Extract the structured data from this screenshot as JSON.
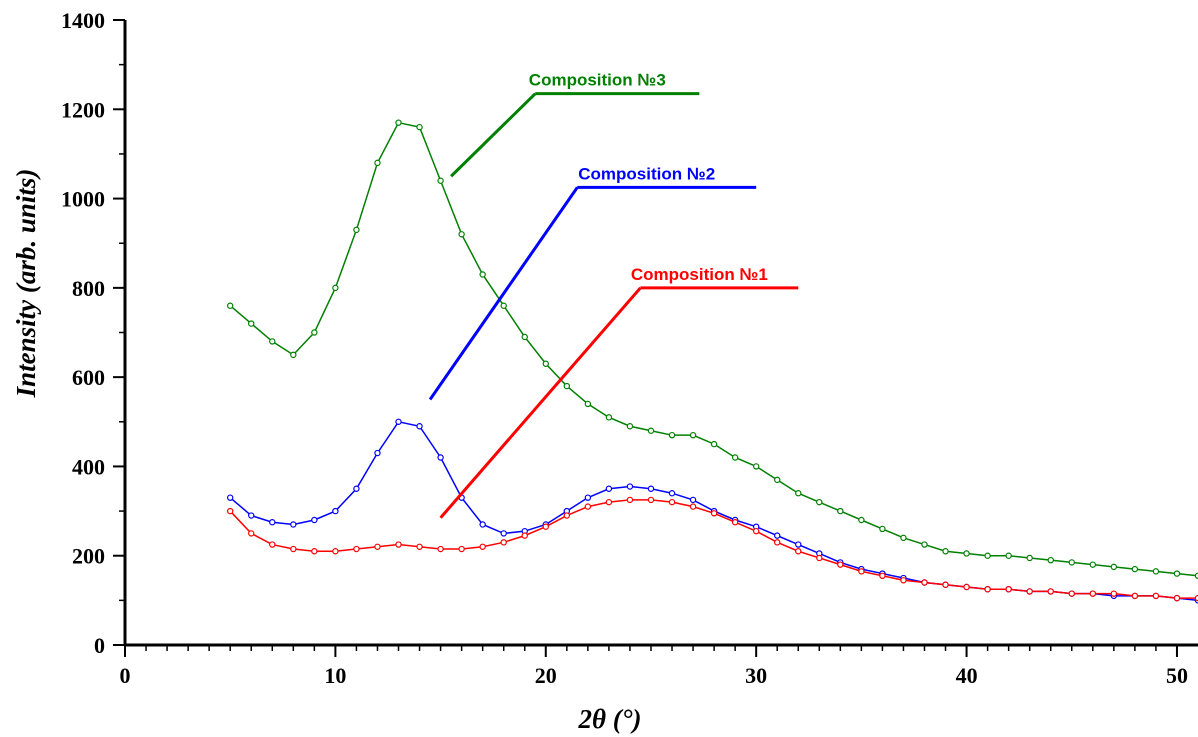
{
  "chart_data": {
    "type": "scatter",
    "xlabel": "2θ (°)",
    "ylabel": "Intensity (arb. units)",
    "xlim": [
      0,
      51
    ],
    "ylim": [
      0,
      1400
    ],
    "x_ticks": [
      0,
      10,
      20,
      30,
      40,
      50
    ],
    "y_ticks": [
      0,
      200,
      400,
      600,
      800,
      1000,
      1200,
      1400
    ],
    "x_tick_labels": [
      "0",
      "10",
      "20",
      "30",
      "40",
      "50"
    ],
    "y_tick_labels": [
      "0",
      "200",
      "400",
      "600",
      "800",
      "1000",
      "1200",
      "1400"
    ],
    "grid": false,
    "legend": "callout labels inside plot",
    "series": [
      {
        "name": "Composition №3",
        "color": "#008000",
        "marker": "open-circle",
        "x": [
          5,
          6,
          7,
          8,
          9,
          10,
          11,
          12,
          13,
          14,
          15,
          16,
          17,
          18,
          19,
          20,
          21,
          22,
          23,
          24,
          25,
          26,
          27,
          28,
          29,
          30,
          31,
          32,
          33,
          34,
          35,
          36,
          37,
          38,
          39,
          40,
          41,
          42,
          43,
          44,
          45,
          46,
          47,
          48,
          49,
          50,
          51
        ],
        "y": [
          760,
          720,
          680,
          650,
          700,
          800,
          930,
          1080,
          1170,
          1160,
          1040,
          920,
          830,
          760,
          690,
          630,
          580,
          540,
          510,
          490,
          480,
          470,
          470,
          450,
          420,
          400,
          370,
          340,
          320,
          300,
          280,
          260,
          240,
          225,
          210,
          205,
          200,
          200,
          195,
          190,
          185,
          180,
          175,
          170,
          165,
          160,
          155
        ]
      },
      {
        "name": "Composition №2",
        "color": "#0000ff",
        "marker": "open-circle",
        "x": [
          5,
          6,
          7,
          8,
          9,
          10,
          11,
          12,
          13,
          14,
          15,
          16,
          17,
          18,
          19,
          20,
          21,
          22,
          23,
          24,
          25,
          26,
          27,
          28,
          29,
          30,
          31,
          32,
          33,
          34,
          35,
          36,
          37,
          38,
          39,
          40,
          41,
          42,
          43,
          44,
          45,
          46,
          47,
          48,
          49,
          50,
          51
        ],
        "y": [
          330,
          290,
          275,
          270,
          280,
          300,
          350,
          430,
          500,
          490,
          420,
          330,
          270,
          250,
          255,
          270,
          300,
          330,
          350,
          355,
          350,
          340,
          325,
          300,
          280,
          265,
          245,
          225,
          205,
          185,
          170,
          160,
          150,
          140,
          135,
          130,
          125,
          125,
          120,
          120,
          115,
          115,
          110,
          110,
          110,
          105,
          100
        ]
      },
      {
        "name": "Composition №1",
        "color": "#ff0000",
        "marker": "open-circle",
        "x": [
          5,
          6,
          7,
          8,
          9,
          10,
          11,
          12,
          13,
          14,
          15,
          16,
          17,
          18,
          19,
          20,
          21,
          22,
          23,
          24,
          25,
          26,
          27,
          28,
          29,
          30,
          31,
          32,
          33,
          34,
          35,
          36,
          37,
          38,
          39,
          40,
          41,
          42,
          43,
          44,
          45,
          46,
          47,
          48,
          49,
          50,
          51
        ],
        "y": [
          300,
          250,
          225,
          215,
          210,
          210,
          215,
          220,
          225,
          220,
          215,
          215,
          220,
          230,
          245,
          265,
          290,
          310,
          320,
          325,
          325,
          320,
          310,
          295,
          275,
          255,
          230,
          210,
          195,
          180,
          165,
          155,
          145,
          140,
          135,
          130,
          125,
          125,
          120,
          120,
          115,
          115,
          115,
          110,
          110,
          105,
          105
        ]
      }
    ],
    "annotations": [
      {
        "text": "Composition №3",
        "series": 0
      },
      {
        "text": "Composition №2",
        "series": 1
      },
      {
        "text": "Composition №1",
        "series": 2
      }
    ]
  }
}
